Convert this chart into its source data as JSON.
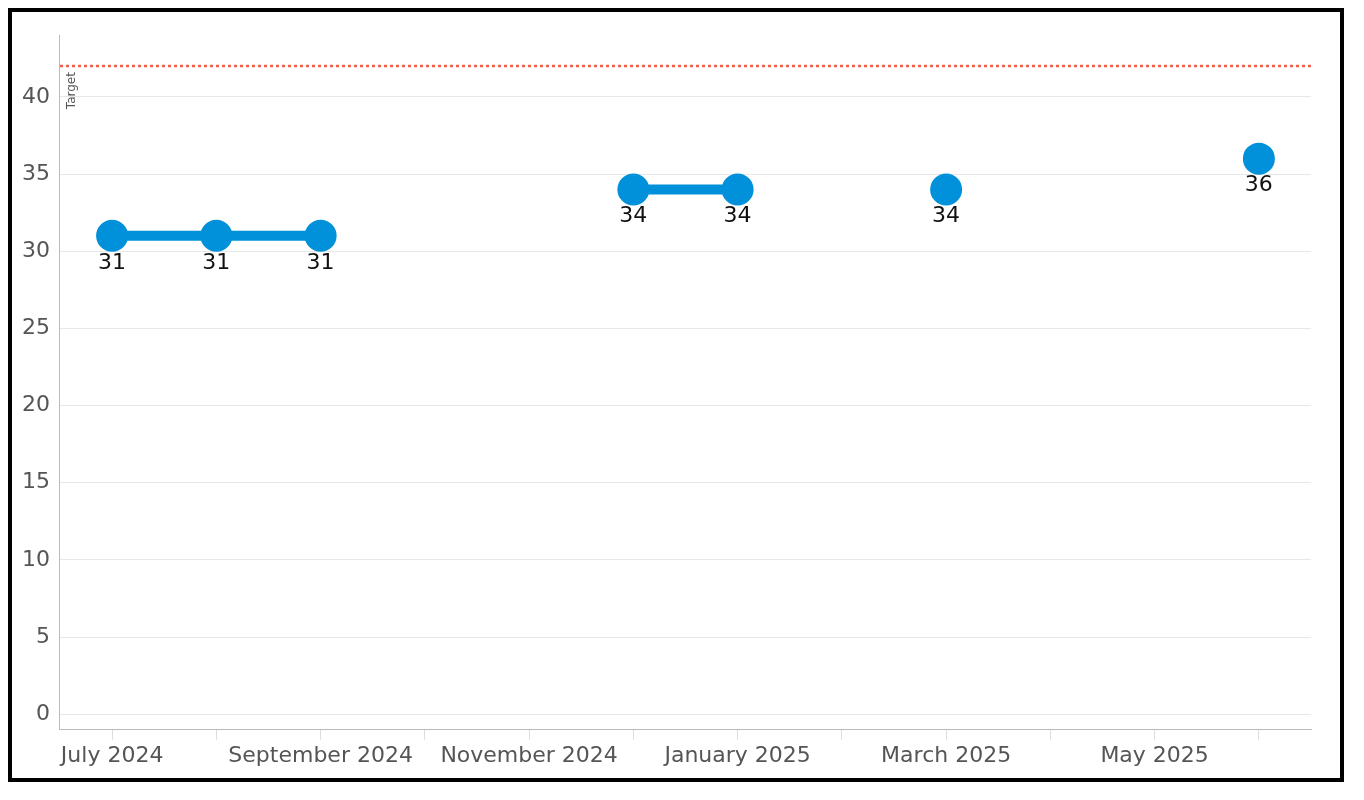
{
  "chart_data": {
    "type": "line",
    "categories": [
      "July 2024",
      null,
      "September 2024",
      null,
      "November 2024",
      null,
      "January 2025",
      null,
      "March 2025",
      null,
      "May 2025",
      null
    ],
    "series": [
      {
        "color": "#0091da",
        "values": [
          31,
          31,
          31,
          null,
          null,
          34,
          34,
          null,
          34,
          null,
          null,
          36
        ]
      }
    ],
    "ylim": [
      -1,
      44
    ],
    "yticks": [
      0,
      5,
      10,
      15,
      20,
      25,
      30,
      35,
      40
    ],
    "ref_lines": [
      {
        "axis": "y",
        "value": 42,
        "label": "Target",
        "color": "#f0604d",
        "line_style": "dotted"
      }
    ],
    "data_labels": true,
    "grid": "y",
    "legend": false,
    "marker": "circle",
    "line_style": "solid"
  }
}
